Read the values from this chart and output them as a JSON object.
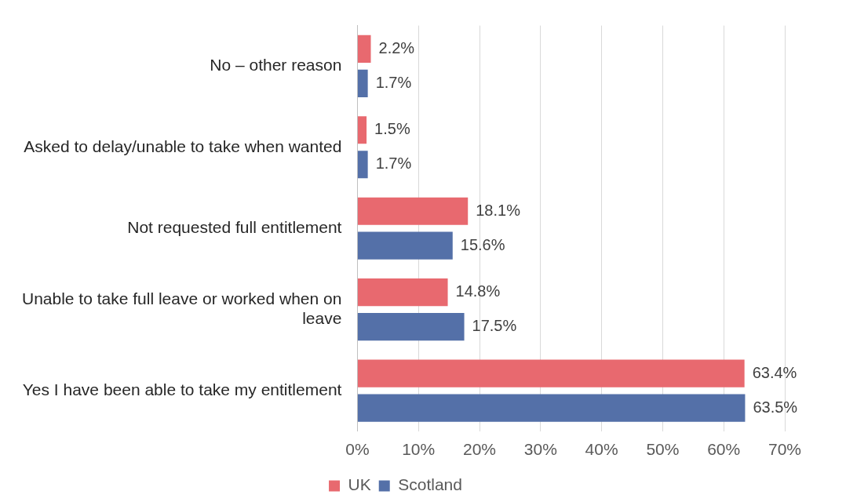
{
  "chart_data": {
    "type": "bar",
    "orientation": "horizontal",
    "categories": [
      "No – other reason",
      "Asked to delay/unable to take when wanted",
      "Not requested full entitlement",
      "Unable to take full leave or worked when on leave",
      "Yes I have been able to take my entitlement"
    ],
    "series": [
      {
        "name": "UK",
        "color": "#e8696f",
        "values": [
          2.2,
          1.5,
          18.1,
          14.8,
          63.4
        ],
        "value_labels": [
          "2.2%",
          "1.5%",
          "18.1%",
          "14.8%",
          "63.4%"
        ]
      },
      {
        "name": "Scotland",
        "color": "#5470a8",
        "values": [
          1.7,
          1.7,
          15.6,
          17.5,
          63.5
        ],
        "value_labels": [
          "1.7%",
          "1.7%",
          "15.6%",
          "17.5%",
          "63.5%"
        ]
      }
    ],
    "xlim": [
      0,
      70
    ],
    "xticks": [
      {
        "value": 0,
        "label": "0%"
      },
      {
        "value": 10,
        "label": "10%"
      },
      {
        "value": 20,
        "label": "20%"
      },
      {
        "value": 30,
        "label": "30%"
      },
      {
        "value": 40,
        "label": "40%"
      },
      {
        "value": 50,
        "label": "50%"
      },
      {
        "value": 60,
        "label": "60%"
      },
      {
        "value": 70,
        "label": "70%"
      }
    ],
    "grid": "x",
    "legend": "bottom"
  }
}
